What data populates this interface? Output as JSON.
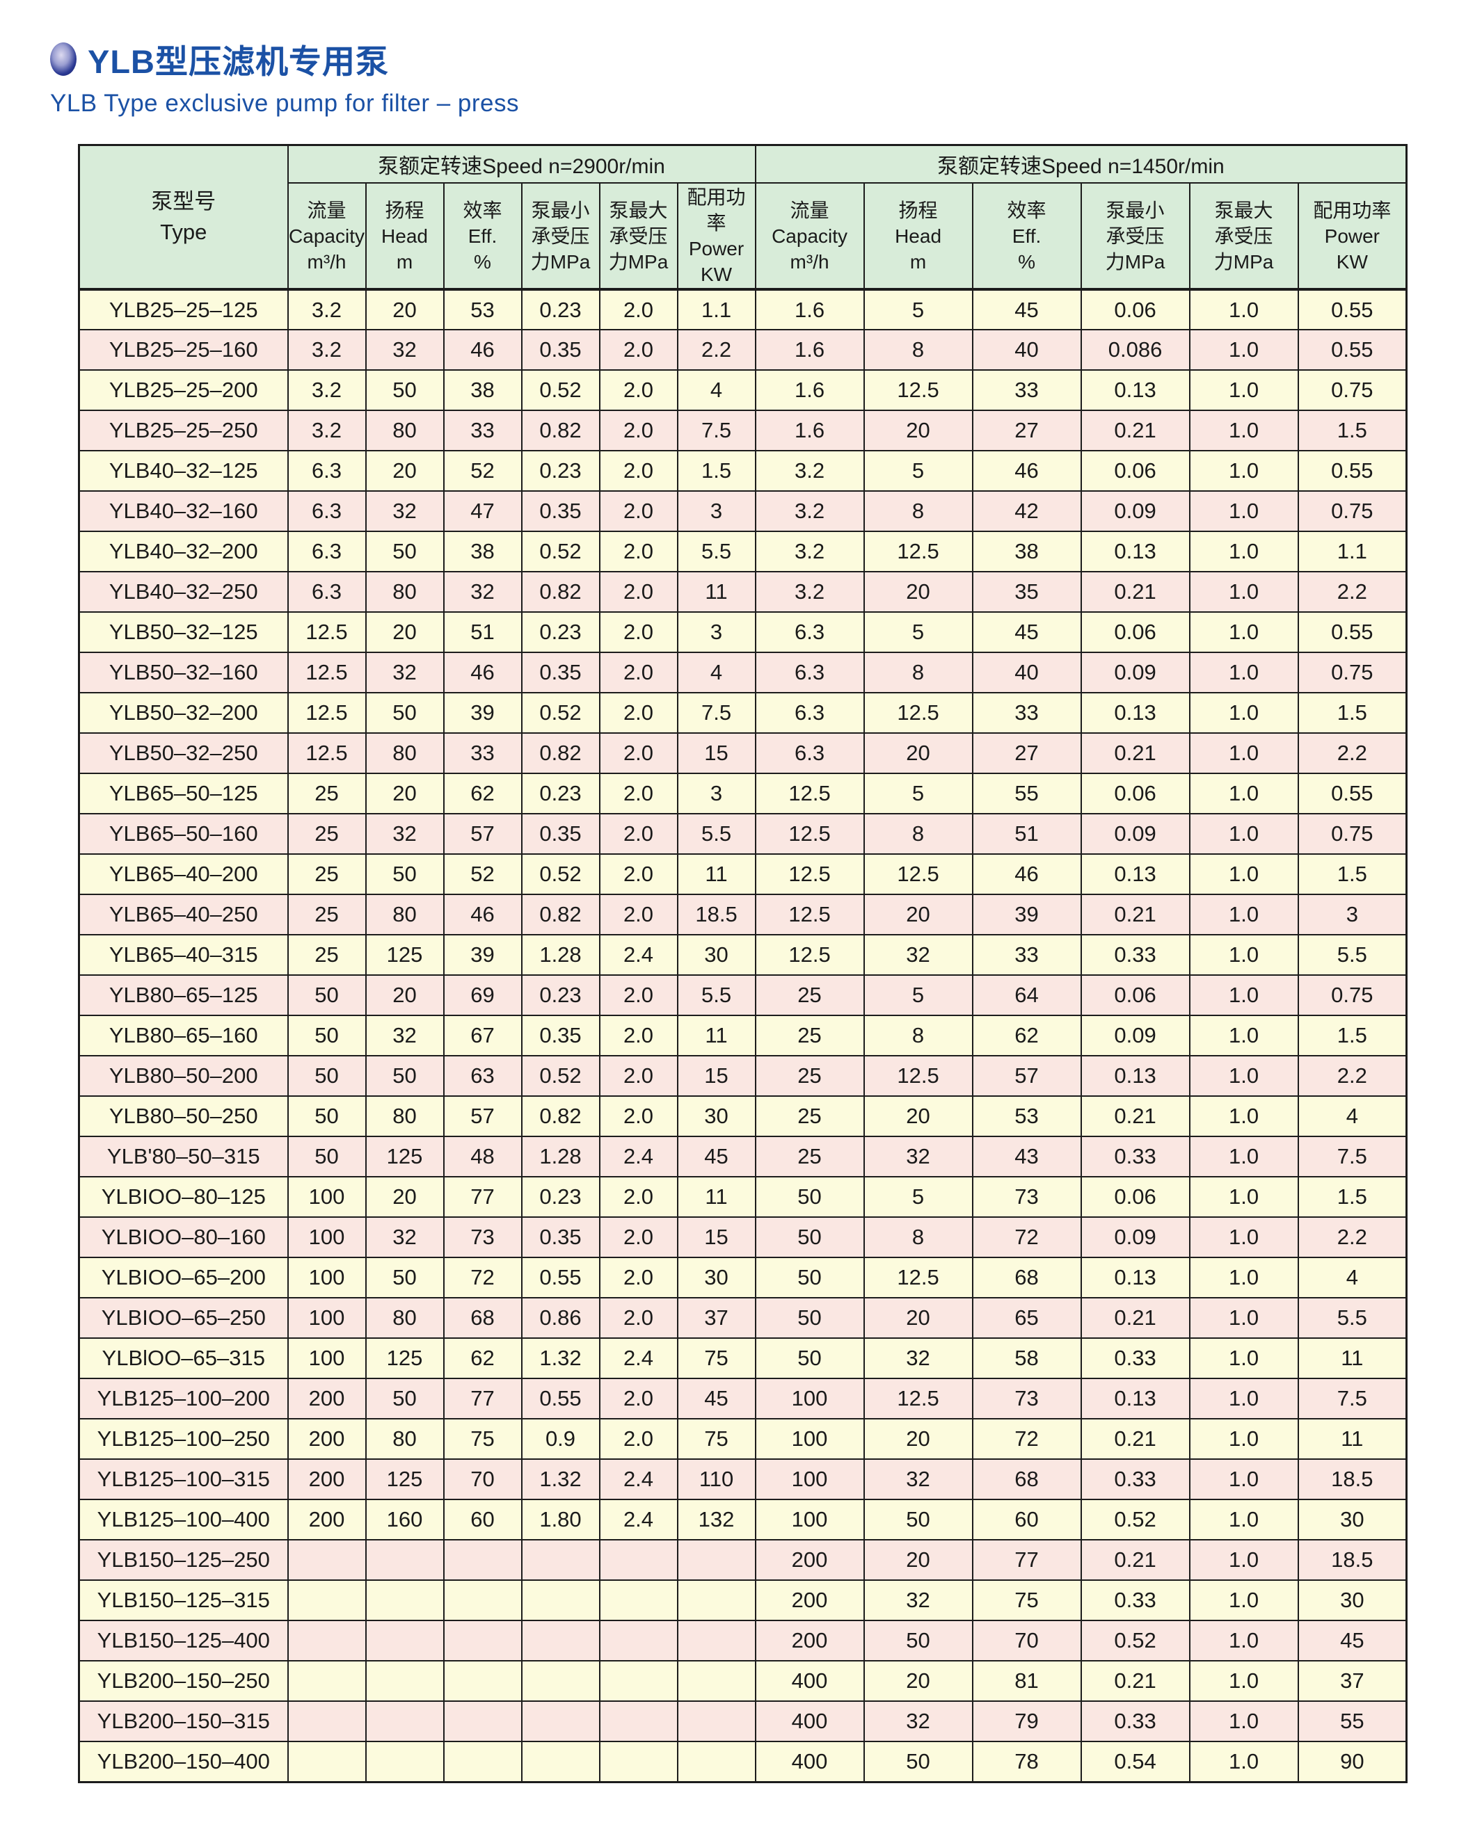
{
  "header": {
    "title_zh": "YLB型压滤机专用泵",
    "subtitle_en": "YLB Type exclusive pump for filter – press"
  },
  "colors": {
    "accent_blue": "#1b51a5",
    "header_green": "#d8ecd9",
    "row_yellow": "#fcfbdd",
    "row_pink": "#fae7e2",
    "border": "#1c1c1c"
  },
  "table": {
    "type_header": {
      "zh": "泵型号",
      "en": "Type"
    },
    "speed_sections": [
      {
        "key": "2900",
        "label": "泵额定转速Speed n=2900r/min"
      },
      {
        "key": "1450",
        "label": "泵额定转速Speed n=1450r/min"
      }
    ],
    "sub_columns": [
      {
        "key": "capacity",
        "lines": [
          "流量",
          "Capacity",
          "m³/h"
        ]
      },
      {
        "key": "head",
        "lines": [
          "扬程",
          "Head",
          "m"
        ]
      },
      {
        "key": "efficiency",
        "lines": [
          "效率",
          "Eff.",
          "%"
        ]
      },
      {
        "key": "min-pressure",
        "lines": [
          "泵最小",
          "承受压",
          "力MPa"
        ]
      },
      {
        "key": "max-pressure",
        "lines": [
          "泵最大",
          "承受压",
          "力MPa"
        ]
      },
      {
        "key": "power",
        "lines": [
          "配用功率",
          "Power",
          "KW"
        ]
      }
    ],
    "rows": [
      {
        "type": "YLB25–25–125",
        "n2900": [
          "3.2",
          "20",
          "53",
          "0.23",
          "2.0",
          "1.1"
        ],
        "n1450": [
          "1.6",
          "5",
          "45",
          "0.06",
          "1.0",
          "0.55"
        ]
      },
      {
        "type": "YLB25–25–160",
        "n2900": [
          "3.2",
          "32",
          "46",
          "0.35",
          "2.0",
          "2.2"
        ],
        "n1450": [
          "1.6",
          "8",
          "40",
          "0.086",
          "1.0",
          "0.55"
        ]
      },
      {
        "type": "YLB25–25–200",
        "n2900": [
          "3.2",
          "50",
          "38",
          "0.52",
          "2.0",
          "4"
        ],
        "n1450": [
          "1.6",
          "12.5",
          "33",
          "0.13",
          "1.0",
          "0.75"
        ]
      },
      {
        "type": "YLB25–25–250",
        "n2900": [
          "3.2",
          "80",
          "33",
          "0.82",
          "2.0",
          "7.5"
        ],
        "n1450": [
          "1.6",
          "20",
          "27",
          "0.21",
          "1.0",
          "1.5"
        ]
      },
      {
        "type": "YLB40–32–125",
        "n2900": [
          "6.3",
          "20",
          "52",
          "0.23",
          "2.0",
          "1.5"
        ],
        "n1450": [
          "3.2",
          "5",
          "46",
          "0.06",
          "1.0",
          "0.55"
        ]
      },
      {
        "type": "YLB40–32–160",
        "n2900": [
          "6.3",
          "32",
          "47",
          "0.35",
          "2.0",
          "3"
        ],
        "n1450": [
          "3.2",
          "8",
          "42",
          "0.09",
          "1.0",
          "0.75"
        ]
      },
      {
        "type": "YLB40–32–200",
        "n2900": [
          "6.3",
          "50",
          "38",
          "0.52",
          "2.0",
          "5.5"
        ],
        "n1450": [
          "3.2",
          "12.5",
          "38",
          "0.13",
          "1.0",
          "1.1"
        ]
      },
      {
        "type": "YLB40–32–250",
        "n2900": [
          "6.3",
          "80",
          "32",
          "0.82",
          "2.0",
          "11"
        ],
        "n1450": [
          "3.2",
          "20",
          "35",
          "0.21",
          "1.0",
          "2.2"
        ]
      },
      {
        "type": "YLB50–32–125",
        "n2900": [
          "12.5",
          "20",
          "51",
          "0.23",
          "2.0",
          "3"
        ],
        "n1450": [
          "6.3",
          "5",
          "45",
          "0.06",
          "1.0",
          "0.55"
        ]
      },
      {
        "type": "YLB50–32–160",
        "n2900": [
          "12.5",
          "32",
          "46",
          "0.35",
          "2.0",
          "4"
        ],
        "n1450": [
          "6.3",
          "8",
          "40",
          "0.09",
          "1.0",
          "0.75"
        ]
      },
      {
        "type": "YLB50–32–200",
        "n2900": [
          "12.5",
          "50",
          "39",
          "0.52",
          "2.0",
          "7.5"
        ],
        "n1450": [
          "6.3",
          "12.5",
          "33",
          "0.13",
          "1.0",
          "1.5"
        ]
      },
      {
        "type": "YLB50–32–250",
        "n2900": [
          "12.5",
          "80",
          "33",
          "0.82",
          "2.0",
          "15"
        ],
        "n1450": [
          "6.3",
          "20",
          "27",
          "0.21",
          "1.0",
          "2.2"
        ]
      },
      {
        "type": "YLB65–50–125",
        "n2900": [
          "25",
          "20",
          "62",
          "0.23",
          "2.0",
          "3"
        ],
        "n1450": [
          "12.5",
          "5",
          "55",
          "0.06",
          "1.0",
          "0.55"
        ]
      },
      {
        "type": "YLB65–50–160",
        "n2900": [
          "25",
          "32",
          "57",
          "0.35",
          "2.0",
          "5.5"
        ],
        "n1450": [
          "12.5",
          "8",
          "51",
          "0.09",
          "1.0",
          "0.75"
        ]
      },
      {
        "type": "YLB65–40–200",
        "n2900": [
          "25",
          "50",
          "52",
          "0.52",
          "2.0",
          "11"
        ],
        "n1450": [
          "12.5",
          "12.5",
          "46",
          "0.13",
          "1.0",
          "1.5"
        ]
      },
      {
        "type": "YLB65–40–250",
        "n2900": [
          "25",
          "80",
          "46",
          "0.82",
          "2.0",
          "18.5"
        ],
        "n1450": [
          "12.5",
          "20",
          "39",
          "0.21",
          "1.0",
          "3"
        ]
      },
      {
        "type": "YLB65–40–315",
        "n2900": [
          "25",
          "125",
          "39",
          "1.28",
          "2.4",
          "30"
        ],
        "n1450": [
          "12.5",
          "32",
          "33",
          "0.33",
          "1.0",
          "5.5"
        ]
      },
      {
        "type": "YLB80–65–125",
        "n2900": [
          "50",
          "20",
          "69",
          "0.23",
          "2.0",
          "5.5"
        ],
        "n1450": [
          "25",
          "5",
          "64",
          "0.06",
          "1.0",
          "0.75"
        ]
      },
      {
        "type": "YLB80–65–160",
        "n2900": [
          "50",
          "32",
          "67",
          "0.35",
          "2.0",
          "11"
        ],
        "n1450": [
          "25",
          "8",
          "62",
          "0.09",
          "1.0",
          "1.5"
        ]
      },
      {
        "type": "YLB80–50–200",
        "n2900": [
          "50",
          "50",
          "63",
          "0.52",
          "2.0",
          "15"
        ],
        "n1450": [
          "25",
          "12.5",
          "57",
          "0.13",
          "1.0",
          "2.2"
        ]
      },
      {
        "type": "YLB80–50–250",
        "n2900": [
          "50",
          "80",
          "57",
          "0.82",
          "2.0",
          "30"
        ],
        "n1450": [
          "25",
          "20",
          "53",
          "0.21",
          "1.0",
          "4"
        ]
      },
      {
        "type": "YLB'80–50–315",
        "n2900": [
          "50",
          "125",
          "48",
          "1.28",
          "2.4",
          "45"
        ],
        "n1450": [
          "25",
          "32",
          "43",
          "0.33",
          "1.0",
          "7.5"
        ]
      },
      {
        "type": "YLBIOO–80–125",
        "n2900": [
          "100",
          "20",
          "77",
          "0.23",
          "2.0",
          "11"
        ],
        "n1450": [
          "50",
          "5",
          "73",
          "0.06",
          "1.0",
          "1.5"
        ]
      },
      {
        "type": "YLBIOO–80–160",
        "n2900": [
          "100",
          "32",
          "73",
          "0.35",
          "2.0",
          "15"
        ],
        "n1450": [
          "50",
          "8",
          "72",
          "0.09",
          "1.0",
          "2.2"
        ]
      },
      {
        "type": "YLBIOO–65–200",
        "n2900": [
          "100",
          "50",
          "72",
          "0.55",
          "2.0",
          "30"
        ],
        "n1450": [
          "50",
          "12.5",
          "68",
          "0.13",
          "1.0",
          "4"
        ]
      },
      {
        "type": "YLBIOO–65–250",
        "n2900": [
          "100",
          "80",
          "68",
          "0.86",
          "2.0",
          "37"
        ],
        "n1450": [
          "50",
          "20",
          "65",
          "0.21",
          "1.0",
          "5.5"
        ]
      },
      {
        "type": "YLBlOO–65–315",
        "n2900": [
          "100",
          "125",
          "62",
          "1.32",
          "2.4",
          "75"
        ],
        "n1450": [
          "50",
          "32",
          "58",
          "0.33",
          "1.0",
          "11"
        ]
      },
      {
        "type": "YLB125–100–200",
        "n2900": [
          "200",
          "50",
          "77",
          "0.55",
          "2.0",
          "45"
        ],
        "n1450": [
          "100",
          "12.5",
          "73",
          "0.13",
          "1.0",
          "7.5"
        ]
      },
      {
        "type": "YLB125–100–250",
        "n2900": [
          "200",
          "80",
          "75",
          "0.9",
          "2.0",
          "75"
        ],
        "n1450": [
          "100",
          "20",
          "72",
          "0.21",
          "1.0",
          "11"
        ]
      },
      {
        "type": "YLB125–100–315",
        "n2900": [
          "200",
          "125",
          "70",
          "1.32",
          "2.4",
          "110"
        ],
        "n1450": [
          "100",
          "32",
          "68",
          "0.33",
          "1.0",
          "18.5"
        ]
      },
      {
        "type": "YLB125–100–400",
        "n2900": [
          "200",
          "160",
          "60",
          "1.80",
          "2.4",
          "132"
        ],
        "n1450": [
          "100",
          "50",
          "60",
          "0.52",
          "1.0",
          "30"
        ]
      },
      {
        "type": "YLB150–125–250",
        "n2900": [
          "",
          "",
          "",
          "",
          "",
          ""
        ],
        "n1450": [
          "200",
          "20",
          "77",
          "0.21",
          "1.0",
          "18.5"
        ]
      },
      {
        "type": "YLB150–125–315",
        "n2900": [
          "",
          "",
          "",
          "",
          "",
          ""
        ],
        "n1450": [
          "200",
          "32",
          "75",
          "0.33",
          "1.0",
          "30"
        ]
      },
      {
        "type": "YLB150–125–400",
        "n2900": [
          "",
          "",
          "",
          "",
          "",
          ""
        ],
        "n1450": [
          "200",
          "50",
          "70",
          "0.52",
          "1.0",
          "45"
        ]
      },
      {
        "type": "YLB200–150–250",
        "n2900": [
          "",
          "",
          "",
          "",
          "",
          ""
        ],
        "n1450": [
          "400",
          "20",
          "81",
          "0.21",
          "1.0",
          "37"
        ]
      },
      {
        "type": "YLB200–150–315",
        "n2900": [
          "",
          "",
          "",
          "",
          "",
          ""
        ],
        "n1450": [
          "400",
          "32",
          "79",
          "0.33",
          "1.0",
          "55"
        ]
      },
      {
        "type": "YLB200–150–400",
        "n2900": [
          "",
          "",
          "",
          "",
          "",
          ""
        ],
        "n1450": [
          "400",
          "50",
          "78",
          "0.54",
          "1.0",
          "90"
        ]
      }
    ]
  }
}
